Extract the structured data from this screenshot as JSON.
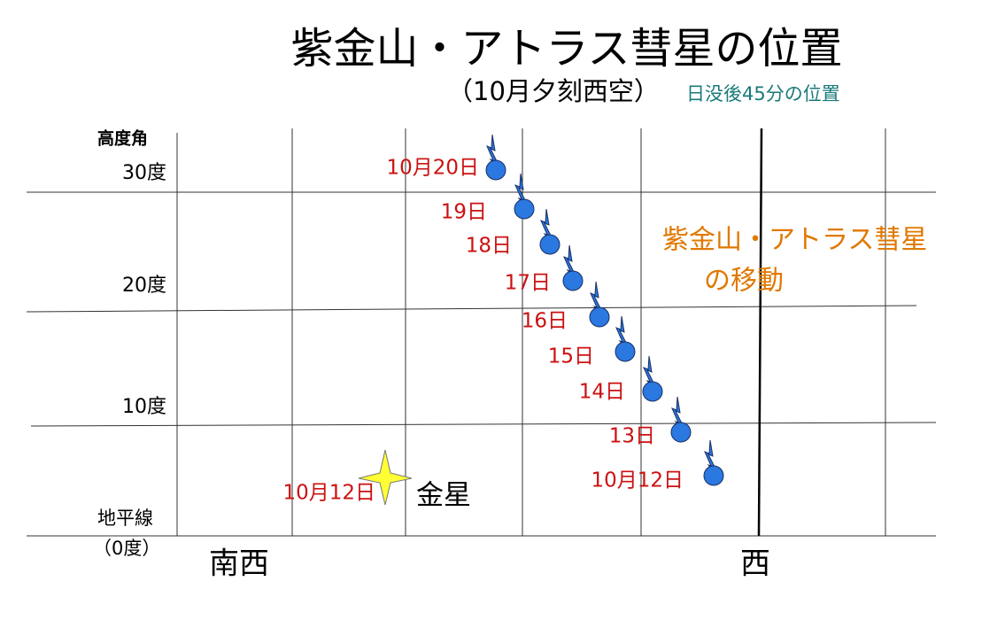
{
  "header": {
    "title": "紫金山・アトラス彗星の位置",
    "subtitle": "（10月夕刻西空）",
    "note": "日没後45分の位置"
  },
  "altitude_axis": {
    "title": "高度角",
    "labels": [
      "30度",
      "20度",
      "10度",
      "地平線",
      "（0度）"
    ]
  },
  "direction_labels": [
    "南西",
    "西"
  ],
  "comet": {
    "legend": [
      "紫金山・アトラス彗星",
      "の移動"
    ],
    "dates": [
      "10月20日",
      "19日",
      "18日",
      "17日",
      "16日",
      "15日",
      "14日",
      "13日",
      "10月12日"
    ]
  },
  "venus": {
    "date": "10月12日",
    "label": "金星"
  }
}
